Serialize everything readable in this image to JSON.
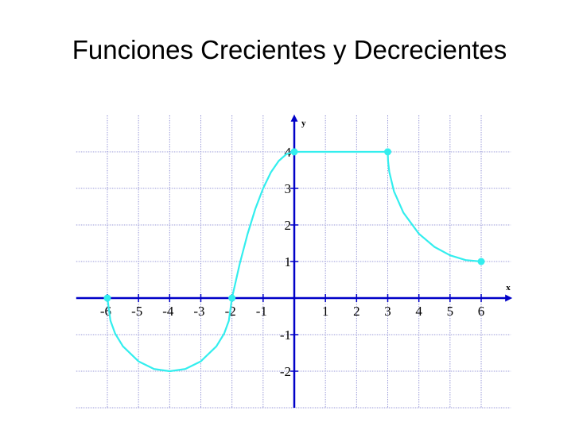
{
  "slide": {
    "title": "Funciones Crecientes y Decrecientes"
  },
  "chart_data": {
    "type": "line",
    "title": "Funciones Crecientes y Decrecientes",
    "xlabel": "x",
    "ylabel": "y",
    "xlim": [
      -7,
      7
    ],
    "ylim": [
      -3,
      5
    ],
    "x_ticks": [
      -6,
      -5,
      -4,
      -3,
      -2,
      -1,
      1,
      2,
      3,
      4,
      5,
      6
    ],
    "y_ticks": [
      -2,
      -1,
      1,
      2,
      3,
      4
    ],
    "grid": true,
    "colors": {
      "axis": "#0000c8",
      "curve": "#33eeee",
      "grid": "#9a9ad8"
    },
    "series": [
      {
        "points": [
          [
            -6,
            0
          ],
          [
            -5.9,
            -0.62
          ],
          [
            -5.75,
            -0.97
          ],
          [
            -5.5,
            -1.32
          ],
          [
            -5,
            -1.73
          ],
          [
            -4.5,
            -1.94
          ],
          [
            -4,
            -2
          ],
          [
            -3.5,
            -1.94
          ],
          [
            -3,
            -1.73
          ],
          [
            -2.5,
            -1.32
          ],
          [
            -2.25,
            -0.97
          ],
          [
            -2.1,
            -0.62
          ],
          [
            -2,
            0
          ]
        ]
      },
      {
        "points": [
          [
            -2,
            0
          ],
          [
            -1.75,
            0.94
          ],
          [
            -1.5,
            1.75
          ],
          [
            -1.25,
            2.44
          ],
          [
            -1,
            3
          ],
          [
            -0.75,
            3.44
          ],
          [
            -0.5,
            3.75
          ],
          [
            -0.25,
            3.94
          ],
          [
            0,
            4
          ]
        ]
      },
      {
        "points": [
          [
            0,
            4
          ],
          [
            3,
            4
          ]
        ]
      },
      {
        "points": [
          [
            3,
            4
          ],
          [
            3.01,
            3.75
          ],
          [
            3.05,
            3.45
          ],
          [
            3.2,
            2.92
          ],
          [
            3.5,
            2.34
          ],
          [
            4,
            1.76
          ],
          [
            4.5,
            1.4
          ],
          [
            5,
            1.17
          ],
          [
            5.5,
            1.04
          ],
          [
            6,
            1
          ]
        ]
      }
    ],
    "markers": [
      [
        -6,
        0
      ],
      [
        -2,
        0
      ],
      [
        0,
        4
      ],
      [
        3,
        4
      ],
      [
        6,
        1
      ]
    ]
  }
}
